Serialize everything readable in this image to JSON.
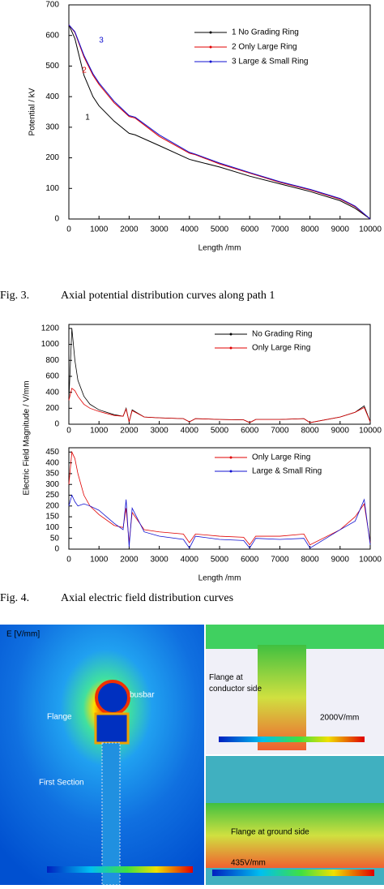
{
  "chart_data": [
    {
      "type": "line",
      "xlabel": "Length /mm",
      "ylabel": "Potential / kV",
      "x": [
        0,
        200,
        500,
        800,
        1000,
        1500,
        2000,
        2200,
        3000,
        4000,
        4200,
        5000,
        6000,
        7000,
        8000,
        9000,
        9500,
        10000
      ],
      "series": [
        {
          "name": "1 No Grading Ring",
          "color": "#000000",
          "values": [
            635,
            590,
            470,
            400,
            370,
            320,
            280,
            275,
            240,
            195,
            190,
            170,
            140,
            115,
            90,
            60,
            35,
            0
          ]
        },
        {
          "name": "2 Only Large Ring",
          "color": "#e00000",
          "values": [
            635,
            610,
            530,
            470,
            440,
            380,
            335,
            330,
            270,
            215,
            210,
            180,
            150,
            120,
            95,
            65,
            40,
            0
          ]
        },
        {
          "name": "3 Large & Small Ring",
          "color": "#1010d0",
          "values": [
            635,
            612,
            535,
            475,
            445,
            385,
            338,
            333,
            275,
            218,
            212,
            183,
            152,
            122,
            97,
            67,
            42,
            0
          ]
        }
      ],
      "annotations": [
        "1",
        "2",
        "3"
      ],
      "xlim": [
        0,
        10000
      ],
      "xticks": [
        0,
        1000,
        2000,
        3000,
        4000,
        5000,
        6000,
        7000,
        8000,
        9000,
        10000
      ],
      "ylim": [
        0,
        700
      ],
      "yticks": [
        0,
        100,
        200,
        300,
        400,
        500,
        600,
        700
      ],
      "legend": "upper-right"
    },
    {
      "type": "line",
      "ylabel": "Electric Field Magnitude / V/mm",
      "x": [
        0,
        100,
        200,
        300,
        500,
        700,
        1000,
        1500,
        1800,
        1900,
        2000,
        2100,
        2500,
        3000,
        3800,
        4000,
        4200,
        5000,
        5800,
        6000,
        6200,
        7000,
        7800,
        8000,
        9000,
        9500,
        9800,
        10000
      ],
      "series": [
        {
          "name": "No Grading Ring",
          "color": "#000000",
          "values": [
            300,
            1200,
            800,
            550,
            350,
            250,
            180,
            120,
            100,
            200,
            30,
            180,
            90,
            80,
            70,
            30,
            70,
            60,
            55,
            20,
            60,
            60,
            70,
            20,
            90,
            150,
            230,
            30
          ]
        },
        {
          "name": "Only Large Ring",
          "color": "#e00000",
          "values": [
            300,
            450,
            420,
            350,
            250,
            200,
            160,
            110,
            100,
            190,
            30,
            170,
            90,
            80,
            70,
            30,
            70,
            60,
            55,
            20,
            60,
            60,
            70,
            20,
            90,
            150,
            210,
            30
          ]
        }
      ],
      "xlim": [
        0,
        10000
      ],
      "xticks": [
        0,
        1000,
        2000,
        3000,
        4000,
        5000,
        6000,
        7000,
        8000,
        9000,
        10000
      ],
      "ylim": [
        0,
        1250
      ],
      "yticks": [
        0,
        200,
        400,
        600,
        800,
        1000,
        1200
      ],
      "legend": "upper-right"
    },
    {
      "type": "line",
      "xlabel": "Length /mm",
      "x": [
        0,
        100,
        200,
        300,
        500,
        700,
        1000,
        1500,
        1800,
        1900,
        2000,
        2100,
        2500,
        3000,
        3800,
        4000,
        4200,
        5000,
        5800,
        6000,
        6200,
        7000,
        7800,
        8000,
        9000,
        9500,
        9800,
        10000
      ],
      "series": [
        {
          "name": "Only Large Ring",
          "color": "#e00000",
          "values": [
            300,
            450,
            420,
            350,
            250,
            200,
            160,
            110,
            100,
            190,
            30,
            170,
            90,
            80,
            70,
            30,
            70,
            60,
            55,
            20,
            60,
            60,
            70,
            20,
            90,
            150,
            210,
            30
          ]
        },
        {
          "name": "Large & Small Ring",
          "color": "#1010d0",
          "values": [
            200,
            250,
            220,
            200,
            210,
            200,
            180,
            120,
            90,
            230,
            10,
            190,
            80,
            60,
            45,
            5,
            60,
            45,
            40,
            5,
            50,
            45,
            50,
            5,
            90,
            130,
            230,
            20
          ]
        }
      ],
      "xlim": [
        0,
        10000
      ],
      "xticks": [
        0,
        1000,
        2000,
        3000,
        4000,
        5000,
        6000,
        7000,
        8000,
        9000,
        10000
      ],
      "ylim": [
        0,
        470
      ],
      "yticks": [
        0,
        50,
        100,
        150,
        200,
        250,
        300,
        350,
        400,
        450
      ],
      "legend": "upper-right"
    }
  ],
  "captions": [
    {
      "number": "Fig. 3.",
      "text": "Axial potential distribution curves along path 1"
    },
    {
      "number": "Fig. 4.",
      "text": "Axial electric field distribution curves"
    }
  ],
  "field_figure": {
    "unit_label": "E [V/mm]",
    "labels": [
      "busbar",
      "Flange",
      "First Section",
      "Flange at conductor side",
      "2000V/mm",
      "Flange at ground side",
      "435V/mm"
    ]
  }
}
